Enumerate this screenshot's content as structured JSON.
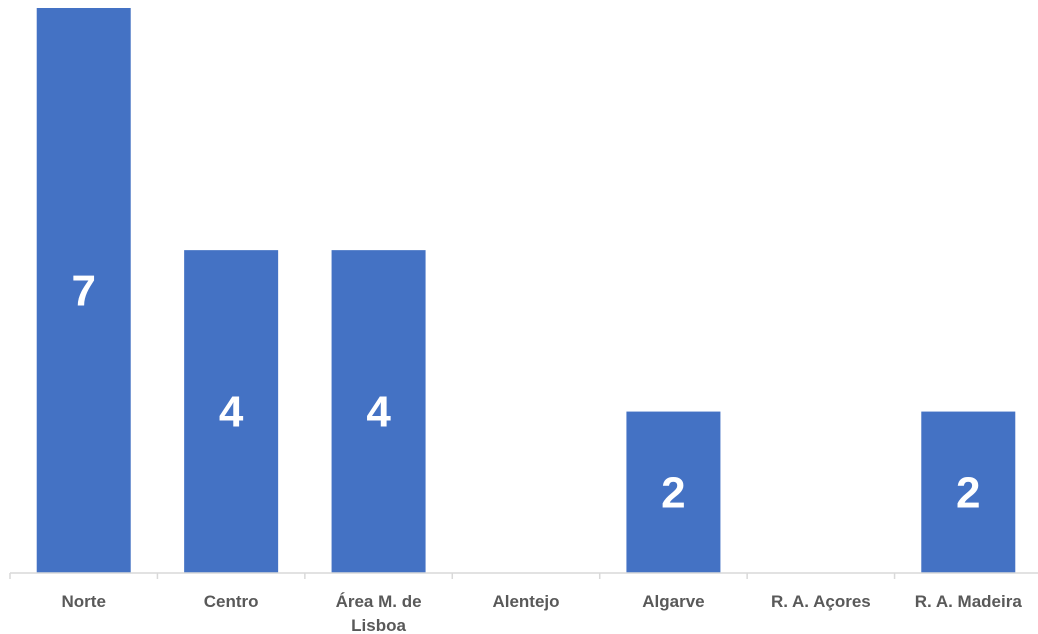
{
  "chart_data": {
    "type": "bar",
    "title": "",
    "xlabel": "",
    "ylabel": "",
    "categories": [
      [
        "Norte"
      ],
      [
        "Centro"
      ],
      [
        "Área M. de",
        "Lisboa"
      ],
      [
        "Alentejo"
      ],
      [
        "Algarve"
      ],
      [
        "R. A. Açores"
      ],
      [
        "R. A. Madeira"
      ]
    ],
    "values": [
      7,
      4,
      4,
      0,
      2,
      0,
      2
    ],
    "data_labels": [
      "7",
      "4",
      "4",
      "",
      "2",
      "",
      "2"
    ],
    "ylim": [
      0,
      7
    ],
    "grid": false,
    "legend": "none",
    "bar_color": "#4472C4",
    "label_color": "#ffffff",
    "axis_text_color": "#595959"
  }
}
